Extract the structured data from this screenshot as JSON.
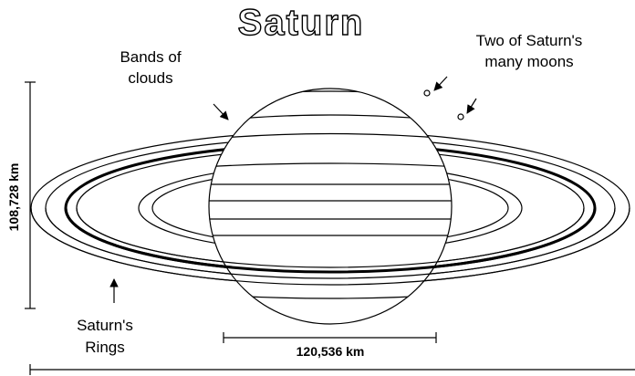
{
  "title": "Saturn",
  "labels": {
    "bands": [
      "Bands of",
      "clouds"
    ],
    "moons": [
      "Two of Saturn's",
      "many moons"
    ],
    "rings": [
      "Saturn's",
      "Rings"
    ],
    "height": "108,728 km",
    "diameter": "120,536 km"
  }
}
